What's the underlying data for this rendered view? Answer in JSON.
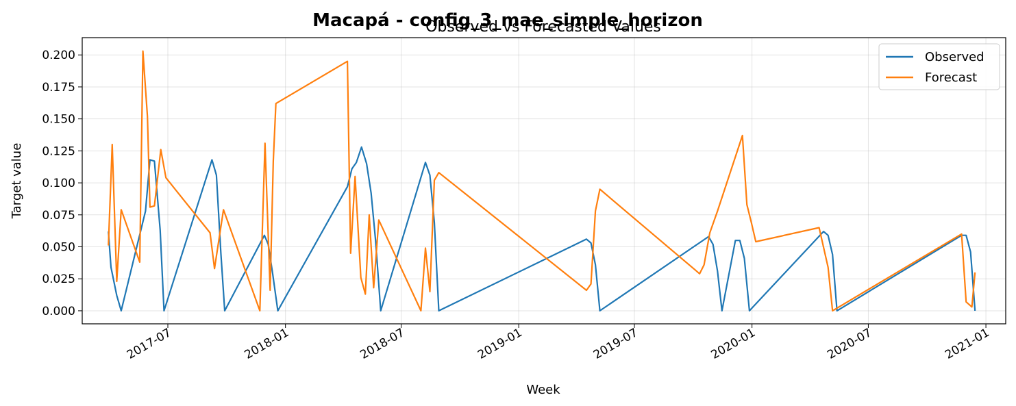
{
  "figure": {
    "suptitle": "Macapá - config_3_mae_simple_horizon"
  },
  "chart_data": {
    "type": "line",
    "title": "Observed vs Forecasted Values",
    "xlabel": "Week",
    "ylabel": "Target value",
    "x_range": [
      "2017-02-17",
      "2021-02-01"
    ],
    "ylim": [
      -0.0102,
      0.2135
    ],
    "x_ticks": [
      {
        "date": "2017-07-01",
        "label": "2017-07"
      },
      {
        "date": "2018-01-01",
        "label": "2018-01"
      },
      {
        "date": "2018-07-01",
        "label": "2018-07"
      },
      {
        "date": "2019-01-01",
        "label": "2019-01"
      },
      {
        "date": "2019-07-01",
        "label": "2019-07"
      },
      {
        "date": "2020-01-01",
        "label": "2020-01"
      },
      {
        "date": "2020-07-01",
        "label": "2020-07"
      },
      {
        "date": "2021-01-01",
        "label": "2021-01"
      }
    ],
    "y_ticks": [
      {
        "value": 0.0,
        "label": "0.000"
      },
      {
        "value": 0.025,
        "label": "0.025"
      },
      {
        "value": 0.05,
        "label": "0.050"
      },
      {
        "value": 0.075,
        "label": "0.075"
      },
      {
        "value": 0.1,
        "label": "0.100"
      },
      {
        "value": 0.125,
        "label": "0.125"
      },
      {
        "value": 0.15,
        "label": "0.150"
      },
      {
        "value": 0.175,
        "label": "0.175"
      },
      {
        "value": 0.2,
        "label": "0.200"
      }
    ],
    "grid": true,
    "legend": "top-right",
    "series": [
      {
        "name": "Observed",
        "color": "#1f77b4",
        "points": [
          [
            "2017-03-30",
            0.062
          ],
          [
            "2017-04-03",
            0.034
          ],
          [
            "2017-04-12",
            0.012
          ],
          [
            "2017-04-19",
            0.0
          ],
          [
            "2017-05-27",
            0.078
          ],
          [
            "2017-06-03",
            0.118
          ],
          [
            "2017-06-10",
            0.117
          ],
          [
            "2017-06-19",
            0.063
          ],
          [
            "2017-06-25",
            0.0
          ],
          [
            "2017-09-08",
            0.118
          ],
          [
            "2017-09-15",
            0.106
          ],
          [
            "2017-09-22",
            0.045
          ],
          [
            "2017-09-28",
            0.0
          ],
          [
            "2017-11-29",
            0.059
          ],
          [
            "2017-12-05",
            0.052
          ],
          [
            "2017-12-12",
            0.029
          ],
          [
            "2017-12-20",
            0.0
          ],
          [
            "2018-04-08",
            0.097
          ],
          [
            "2018-04-15",
            0.111
          ],
          [
            "2018-04-22",
            0.116
          ],
          [
            "2018-04-30",
            0.128
          ],
          [
            "2018-05-08",
            0.115
          ],
          [
            "2018-05-15",
            0.092
          ],
          [
            "2018-05-22",
            0.055
          ],
          [
            "2018-05-30",
            0.0
          ],
          [
            "2018-08-08",
            0.116
          ],
          [
            "2018-08-15",
            0.106
          ],
          [
            "2018-08-22",
            0.069
          ],
          [
            "2018-08-29",
            0.0
          ],
          [
            "2019-04-17",
            0.056
          ],
          [
            "2019-04-24",
            0.053
          ],
          [
            "2019-05-01",
            0.036
          ],
          [
            "2019-05-08",
            0.0
          ],
          [
            "2019-10-25",
            0.058
          ],
          [
            "2019-11-01",
            0.052
          ],
          [
            "2019-11-08",
            0.031
          ],
          [
            "2019-11-15",
            0.0
          ],
          [
            "2019-12-06",
            0.055
          ],
          [
            "2019-12-13",
            0.055
          ],
          [
            "2019-12-20",
            0.041
          ],
          [
            "2019-12-28",
            0.0
          ],
          [
            "2020-04-22",
            0.062
          ],
          [
            "2020-04-29",
            0.059
          ],
          [
            "2020-05-06",
            0.044
          ],
          [
            "2020-05-13",
            0.0
          ],
          [
            "2020-11-24",
            0.059
          ],
          [
            "2020-12-01",
            0.059
          ],
          [
            "2020-12-08",
            0.046
          ],
          [
            "2020-12-15",
            0.0
          ]
        ]
      },
      {
        "name": "Forecast",
        "color": "#ff7f0e",
        "points": [
          [
            "2017-03-30",
            0.051
          ],
          [
            "2017-04-05",
            0.13
          ],
          [
            "2017-04-12",
            0.023
          ],
          [
            "2017-04-19",
            0.079
          ],
          [
            "2017-05-18",
            0.038
          ],
          [
            "2017-05-23",
            0.203
          ],
          [
            "2017-05-30",
            0.152
          ],
          [
            "2017-06-03",
            0.081
          ],
          [
            "2017-06-10",
            0.082
          ],
          [
            "2017-06-20",
            0.126
          ],
          [
            "2017-06-28",
            0.104
          ],
          [
            "2017-09-05",
            0.061
          ],
          [
            "2017-09-12",
            0.033
          ],
          [
            "2017-09-26",
            0.079
          ],
          [
            "2017-11-22",
            0.0
          ],
          [
            "2017-11-30",
            0.131
          ],
          [
            "2017-12-08",
            0.016
          ],
          [
            "2017-12-13",
            0.117
          ],
          [
            "2017-12-17",
            0.162
          ],
          [
            "2018-04-08",
            0.195
          ],
          [
            "2018-04-13",
            0.045
          ],
          [
            "2018-04-20",
            0.105
          ],
          [
            "2018-04-29",
            0.026
          ],
          [
            "2018-05-06",
            0.013
          ],
          [
            "2018-05-12",
            0.075
          ],
          [
            "2018-05-19",
            0.018
          ],
          [
            "2018-05-27",
            0.071
          ],
          [
            "2018-08-01",
            0.0
          ],
          [
            "2018-08-08",
            0.049
          ],
          [
            "2018-08-15",
            0.015
          ],
          [
            "2018-08-22",
            0.102
          ],
          [
            "2018-08-29",
            0.108
          ],
          [
            "2019-04-17",
            0.016
          ],
          [
            "2019-04-24",
            0.021
          ],
          [
            "2019-05-01",
            0.078
          ],
          [
            "2019-05-08",
            0.095
          ],
          [
            "2019-10-11",
            0.029
          ],
          [
            "2019-10-18",
            0.036
          ],
          [
            "2019-10-27",
            0.061
          ],
          [
            "2019-11-08",
            0.078
          ],
          [
            "2019-12-17",
            0.137
          ],
          [
            "2019-12-24",
            0.083
          ],
          [
            "2019-12-31",
            0.069
          ],
          [
            "2020-01-07",
            0.054
          ],
          [
            "2020-04-15",
            0.065
          ],
          [
            "2020-04-29",
            0.034
          ],
          [
            "2020-05-06",
            0.0
          ],
          [
            "2020-11-24",
            0.06
          ],
          [
            "2020-12-01",
            0.007
          ],
          [
            "2020-12-10",
            0.003
          ],
          [
            "2020-12-15",
            0.03
          ]
        ]
      }
    ]
  }
}
